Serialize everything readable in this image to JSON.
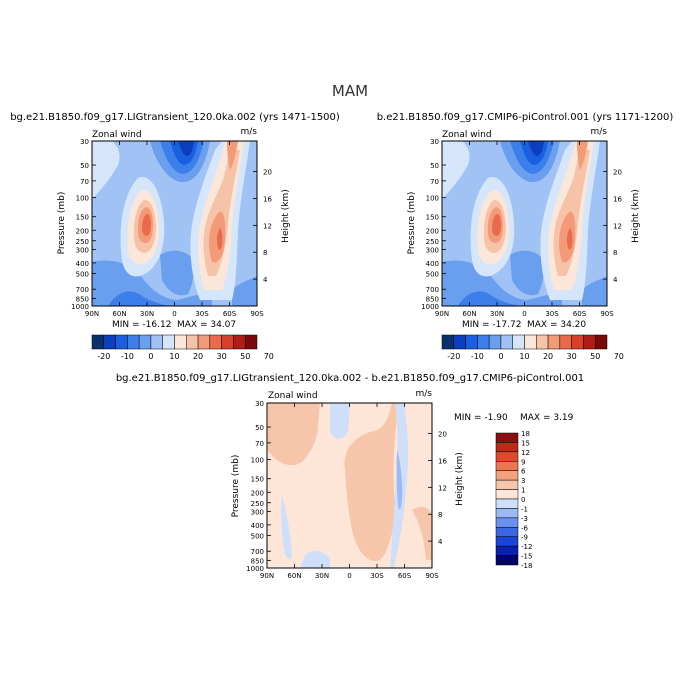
{
  "figure": {
    "season": "MAM"
  },
  "colors": {
    "abs_scale": [
      "#08306b",
      "#0b3fbf",
      "#1a5fe0",
      "#3c7fea",
      "#6a9ff0",
      "#a0c2f5",
      "#d5e5fa",
      "#fbe7da",
      "#f7c3a8",
      "#f39a78",
      "#ea6b4b",
      "#d8402a",
      "#b01c16",
      "#7a0a0a"
    ],
    "diff_scale": [
      "#050563",
      "#0b1fb0",
      "#1a44d6",
      "#3a67e4",
      "#6a90ec",
      "#9db9f3",
      "#cfdffa",
      "#fde6d8",
      "#f7c6aa",
      "#f3a27e",
      "#ec7550",
      "#dd4a2c",
      "#bd2a18",
      "#8a0f0f"
    ]
  },
  "chart_data": [
    {
      "type": "heatmap",
      "title": "bg.e21.B1850.f09_g17.LIGtransient_120.0ka.002 (yrs 1471-1500)",
      "left_label": "Zonal wind",
      "units": "m/s",
      "xlabel": "",
      "ylabel": "Pressure (mb)",
      "y2label": "Height (km)",
      "x_ticks": [
        "90N",
        "60N",
        "30N",
        "0",
        "30S",
        "60S",
        "90S"
      ],
      "y_ticks": [
        "30",
        "50",
        "70",
        "100",
        "150",
        "200",
        "250",
        "300",
        "400",
        "500",
        "700",
        "850",
        "1000"
      ],
      "y2_ticks": [
        "20",
        "16",
        "12",
        "8",
        "4"
      ],
      "min_label": "MIN = -16.12",
      "max_label": "MAX = 34.07",
      "min": -16.12,
      "max": 34.07,
      "colorbar_labels": [
        "-20",
        "-10",
        "0",
        "10",
        "20",
        "30",
        "50",
        "70"
      ]
    },
    {
      "type": "heatmap",
      "title": "b.e21.B1850.f09_g17.CMIP6-piControl.001 (yrs 1171-1200)",
      "left_label": "Zonal wind",
      "units": "m/s",
      "xlabel": "",
      "ylabel": "Pressure (mb)",
      "y2label": "Height (km)",
      "x_ticks": [
        "90N",
        "60N",
        "30N",
        "0",
        "30S",
        "60S",
        "90S"
      ],
      "y_ticks": [
        "30",
        "50",
        "70",
        "100",
        "150",
        "200",
        "250",
        "300",
        "400",
        "500",
        "700",
        "850",
        "1000"
      ],
      "y2_ticks": [
        "20",
        "16",
        "12",
        "8",
        "4"
      ],
      "min_label": "MIN = -17.72",
      "max_label": "MAX = 34.20",
      "min": -17.72,
      "max": 34.2,
      "colorbar_labels": [
        "-20",
        "-10",
        "0",
        "10",
        "20",
        "30",
        "50",
        "70"
      ]
    },
    {
      "type": "heatmap",
      "title": "bg.e21.B1850.f09_g17.LIGtransient_120.0ka.002 - b.e21.B1850.f09_g17.CMIP6-piControl.001",
      "left_label": "Zonal wind",
      "units": "m/s",
      "xlabel": "",
      "ylabel": "Pressure (mb)",
      "y2label": "Height (km)",
      "x_ticks": [
        "90N",
        "60N",
        "30N",
        "0",
        "30S",
        "60S",
        "90S"
      ],
      "y_ticks": [
        "30",
        "50",
        "70",
        "100",
        "150",
        "200",
        "250",
        "300",
        "400",
        "500",
        "700",
        "850",
        "1000"
      ],
      "y2_ticks": [
        "20",
        "16",
        "12",
        "8",
        "4"
      ],
      "min_label": "MIN =  -1.90",
      "max_label": "MAX =   3.19",
      "min": -1.9,
      "max": 3.19,
      "colorbar_labels": [
        "18",
        "15",
        "12",
        "9",
        "6",
        "3",
        "1",
        "0",
        "-1",
        "-3",
        "-6",
        "-9",
        "-12",
        "-15",
        "-18"
      ]
    }
  ]
}
